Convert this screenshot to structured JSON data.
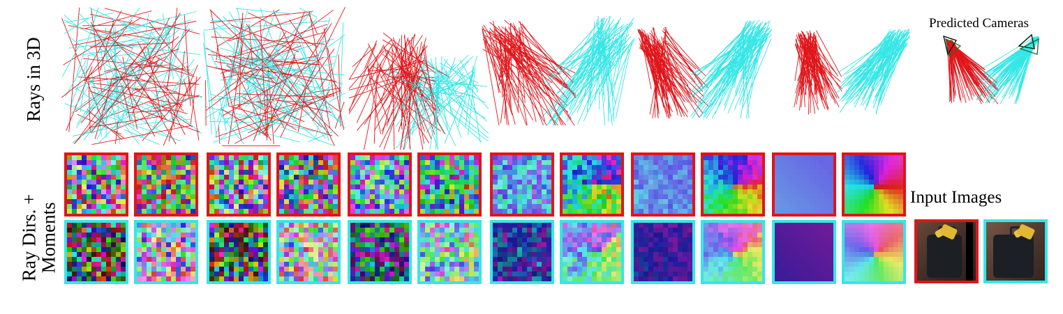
{
  "labels": {
    "rays_in_3d": "Rays in 3D",
    "ray_dirs_moments": "Ray Dirs. +\nMoments",
    "input_images": "Input Images",
    "predicted_cameras": "Predicted Cameras"
  },
  "colors": {
    "camera_1": "#e0151a",
    "camera_2": "#36e6e6",
    "predicted_camera_outline": "#000000",
    "gt_camera_outline": "#1a6b2a"
  },
  "denoising_steps": [
    {
      "noise": 1.0
    },
    {
      "noise": 1.0
    },
    {
      "noise": 0.7
    },
    {
      "noise": 0.35
    },
    {
      "noise": 0.15
    },
    {
      "noise": 0.0
    }
  ],
  "tile_rows": [
    {
      "camera": "camera_1"
    },
    {
      "camera": "camera_2"
    }
  ],
  "tile_kinds": [
    "directions",
    "moments"
  ],
  "input_images": [
    {
      "camera": "camera_1"
    },
    {
      "camera": "camera_2"
    }
  ]
}
